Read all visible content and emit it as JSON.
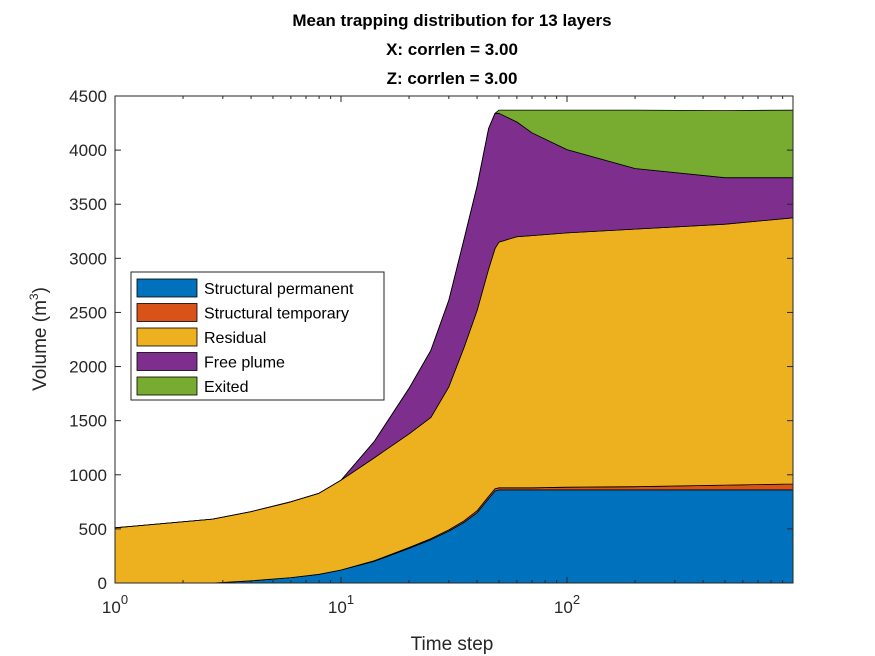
{
  "chart_data": {
    "type": "area",
    "stacked": true,
    "title": [
      "Mean trapping distribution for 13 layers",
      "X: corrlen = 3.00",
      "Z: corrlen = 3.00"
    ],
    "xlabel": "Time step",
    "ylabel": "Volume (m",
    "ylabel_sup": "3",
    "ylabel_close": ")",
    "xscale": "log",
    "xlim": [
      1,
      1000
    ],
    "ylim": [
      0,
      4500
    ],
    "x_ticks": [
      {
        "value": 1,
        "base": "10",
        "exp": "0"
      },
      {
        "value": 10,
        "base": "10",
        "exp": "1"
      },
      {
        "value": 100,
        "base": "10",
        "exp": "2"
      }
    ],
    "y_ticks": [
      0,
      500,
      1000,
      1500,
      2000,
      2500,
      3000,
      3500,
      4000,
      4500
    ],
    "grid": false,
    "legend_position": "left-middle",
    "x": [
      1,
      2.7,
      4,
      6,
      8,
      10,
      14,
      20,
      25,
      30,
      35,
      40,
      45,
      48,
      50,
      60,
      70,
      100,
      200,
      500,
      1000
    ],
    "series": [
      {
        "name": "Structural permanent",
        "color": "#0072BD",
        "values": [
          0,
          0,
          20,
          50,
          80,
          120,
          200,
          320,
          400,
          480,
          560,
          650,
          780,
          850,
          860,
          860,
          860,
          860,
          860,
          860,
          860
        ]
      },
      {
        "name": "Structural temporary",
        "color": "#D95319",
        "values": [
          0,
          0,
          0,
          0,
          0,
          0,
          5,
          8,
          10,
          12,
          15,
          18,
          20,
          20,
          20,
          20,
          20,
          25,
          30,
          45,
          55
        ]
      },
      {
        "name": "Residual",
        "color": "#EDB120",
        "values": [
          510,
          590,
          640,
          700,
          750,
          830,
          950,
          1050,
          1120,
          1320,
          1600,
          1850,
          2100,
          2220,
          2270,
          2320,
          2330,
          2350,
          2380,
          2410,
          2460
        ]
      },
      {
        "name": "Free plume",
        "color": "#7E2F8E",
        "values": [
          0,
          0,
          0,
          0,
          0,
          0,
          150,
          420,
          620,
          800,
          1000,
          1150,
          1300,
          1250,
          1190,
          1060,
          950,
          770,
          560,
          430,
          370
        ]
      },
      {
        "name": "Exited",
        "color": "#77AC30",
        "values": [
          0,
          0,
          0,
          0,
          0,
          0,
          0,
          0,
          0,
          0,
          0,
          0,
          0,
          0,
          30,
          110,
          210,
          365,
          540,
          620,
          625
        ]
      }
    ]
  }
}
